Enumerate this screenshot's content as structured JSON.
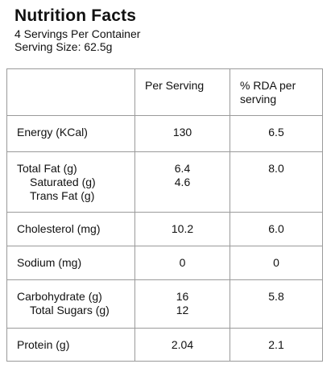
{
  "header": {
    "title": "Nutrition Facts",
    "servings": "4 Servings Per Container",
    "serving_size": "Serving Size: 62.5g"
  },
  "table": {
    "columns": [
      "",
      "Per Serving",
      "% RDA per serving"
    ],
    "rows": [
      {
        "label": [
          "Energy (KCal)"
        ],
        "per_serving": [
          "130"
        ],
        "rda": [
          "6.5"
        ]
      },
      {
        "label": [
          "Total Fat (g)",
          "Saturated (g)",
          "Trans Fat (g)"
        ],
        "per_serving": [
          "6.4",
          "4.6"
        ],
        "rda": [
          "8.0"
        ]
      },
      {
        "label": [
          "Cholesterol (mg)"
        ],
        "per_serving": [
          "10.2"
        ],
        "rda": [
          "6.0"
        ]
      },
      {
        "label": [
          "Sodium (mg)"
        ],
        "per_serving": [
          "0"
        ],
        "rda": [
          "0"
        ]
      },
      {
        "label": [
          "Carbohydrate (g)",
          "Total Sugars (g)"
        ],
        "per_serving": [
          "16",
          "12"
        ],
        "rda": [
          "5.8"
        ]
      },
      {
        "label": [
          "Protein (g)"
        ],
        "per_serving": [
          "2.04"
        ],
        "rda": [
          "2.1"
        ]
      }
    ]
  }
}
